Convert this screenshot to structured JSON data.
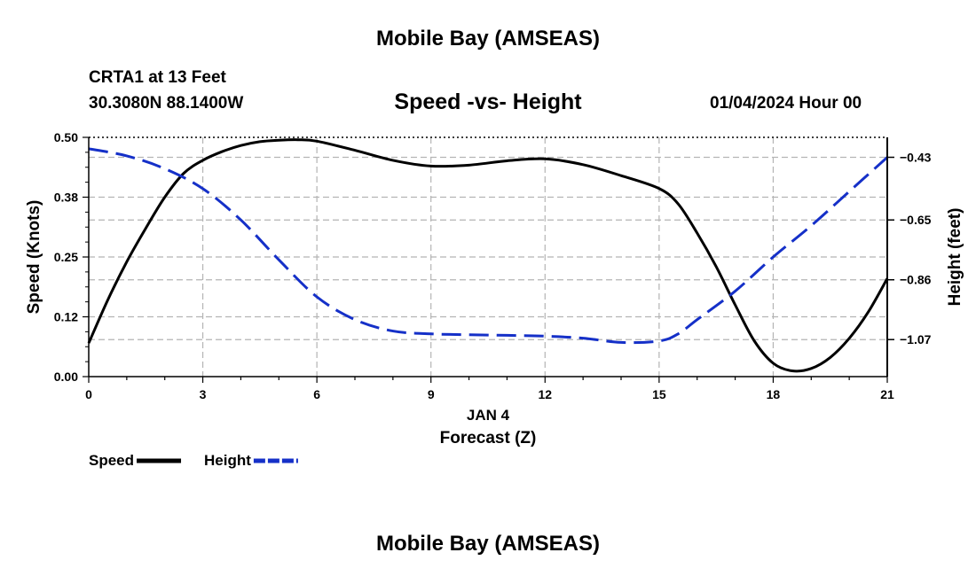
{
  "header": {
    "title": "Mobile Bay (AMSEAS)",
    "station": "CRTA1 at 13 Feet",
    "coordinates": "30.3080N  88.1400W",
    "subtitle": "Speed -vs- Height",
    "datetime": "01/04/2024 Hour 00"
  },
  "footer": {
    "title": "Mobile Bay (AMSEAS)"
  },
  "chart_data": {
    "type": "line",
    "title": "Speed -vs- Height",
    "xlabel": "Forecast (Z)",
    "xlabel_date": "JAN 4",
    "ylabel": "Speed (Knots)",
    "y2label": "Height (feet)",
    "xlim": [
      0,
      21
    ],
    "ylim": [
      0,
      0.5
    ],
    "y2lim": [
      -1.2,
      -0.36
    ],
    "x_ticks": [
      0,
      3,
      6,
      9,
      12,
      15,
      18,
      21
    ],
    "x_tick_labels": [
      "0",
      "3",
      "6",
      "9",
      "12",
      "15",
      "18",
      "21"
    ],
    "y_ticks": [
      0,
      0.125,
      0.25,
      0.375,
      0.5
    ],
    "y_tick_labels": [
      "0.00",
      "0.12",
      "0.25",
      "0.38",
      "0.50"
    ],
    "y2_ticks": [
      -0.43,
      -0.65,
      -0.86,
      -1.07
    ],
    "y2_tick_labels": [
      "−0.43",
      "−0.65",
      "−0.86",
      "−1.07"
    ],
    "grid": true,
    "legend_position": "bottom-left",
    "series": [
      {
        "name": "Speed",
        "axis": "left",
        "color": "#000000",
        "style": "solid",
        "x": [
          0,
          0.5,
          1,
          1.5,
          2,
          2.5,
          3,
          3.5,
          4,
          4.5,
          5,
          5.5,
          6,
          7,
          8,
          9,
          10,
          11,
          12,
          13,
          14,
          15,
          15.5,
          16,
          16.5,
          17,
          17.5,
          18,
          18.5,
          19,
          19.5,
          20,
          20.5,
          21
        ],
        "values": [
          0.07,
          0.16,
          0.24,
          0.31,
          0.375,
          0.425,
          0.452,
          0.47,
          0.483,
          0.491,
          0.494,
          0.495,
          0.492,
          0.473,
          0.452,
          0.44,
          0.442,
          0.451,
          0.455,
          0.443,
          0.42,
          0.393,
          0.361,
          0.3,
          0.23,
          0.15,
          0.075,
          0.028,
          0.012,
          0.017,
          0.04,
          0.08,
          0.135,
          0.205
        ]
      },
      {
        "name": "Height",
        "axis": "right",
        "color": "#1530c8",
        "style": "dashed",
        "x": [
          0,
          1,
          2,
          3,
          4,
          5,
          6,
          7,
          8,
          9,
          10,
          11,
          12,
          13,
          14,
          15,
          15.5,
          16,
          17,
          18,
          19,
          20,
          21
        ],
        "values": [
          -0.4,
          -0.425,
          -0.47,
          -0.54,
          -0.65,
          -0.79,
          -0.92,
          -1.0,
          -1.04,
          -1.05,
          -1.053,
          -1.055,
          -1.058,
          -1.065,
          -1.08,
          -1.075,
          -1.05,
          -1.0,
          -0.9,
          -0.78,
          -0.67,
          -0.55,
          -0.43
        ]
      }
    ]
  }
}
